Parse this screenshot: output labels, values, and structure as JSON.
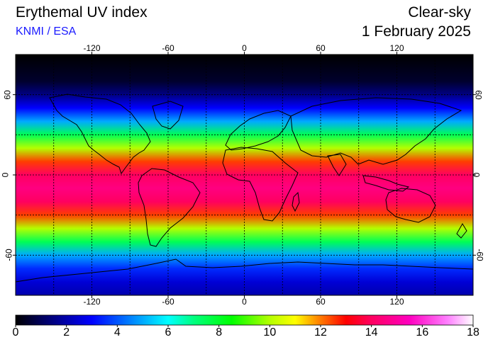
{
  "header": {
    "title": "Erythemal UV index",
    "credit": "KNMI / ESA",
    "condition": "Clear-sky",
    "date": "1 February 2025"
  },
  "map": {
    "projection": "equirectangular",
    "lon_range": [
      -180,
      180
    ],
    "lat_range": [
      -90,
      90
    ],
    "lon_ticks": [
      -120,
      -60,
      0,
      60,
      120
    ],
    "lat_ticks": [
      60,
      0,
      -60
    ],
    "lon_tick_labels": [
      "-120",
      "-60",
      "0",
      "60",
      "120"
    ],
    "lat_tick_labels": [
      "60",
      "0",
      "-60"
    ],
    "gridline_lats": [
      -60,
      -30,
      0,
      30,
      60
    ],
    "gridline_lons": [
      -150,
      -120,
      -90,
      -60,
      -30,
      0,
      30,
      60,
      90,
      120,
      150
    ],
    "uv_zonal_profile": [
      {
        "lat": 90,
        "uv": 0
      },
      {
        "lat": 70,
        "uv": 0.5
      },
      {
        "lat": 60,
        "uv": 1.5
      },
      {
        "lat": 50,
        "uv": 3
      },
      {
        "lat": 40,
        "uv": 5
      },
      {
        "lat": 30,
        "uv": 7.5
      },
      {
        "lat": 20,
        "uv": 10
      },
      {
        "lat": 10,
        "uv": 12.5
      },
      {
        "lat": 0,
        "uv": 14
      },
      {
        "lat": -10,
        "uv": 14.5
      },
      {
        "lat": -20,
        "uv": 14
      },
      {
        "lat": -30,
        "uv": 12.5
      },
      {
        "lat": -40,
        "uv": 10
      },
      {
        "lat": -50,
        "uv": 7.5
      },
      {
        "lat": -60,
        "uv": 5
      },
      {
        "lat": -70,
        "uv": 3.5
      },
      {
        "lat": -80,
        "uv": 2.5
      },
      {
        "lat": -90,
        "uv": 2
      }
    ]
  },
  "colorbar": {
    "min": 0,
    "max": 18,
    "tick_labels": [
      "0",
      "2",
      "4",
      "6",
      "8",
      "10",
      "12",
      "14",
      "16",
      "18"
    ],
    "stops": [
      {
        "v": 0,
        "color": "#000000"
      },
      {
        "v": 1,
        "color": "#00005a"
      },
      {
        "v": 3,
        "color": "#0000ff"
      },
      {
        "v": 5,
        "color": "#00aaff"
      },
      {
        "v": 6,
        "color": "#00ffff"
      },
      {
        "v": 7,
        "color": "#00ff80"
      },
      {
        "v": 8.5,
        "color": "#00ff00"
      },
      {
        "v": 10,
        "color": "#b4ff00"
      },
      {
        "v": 11,
        "color": "#ffff00"
      },
      {
        "v": 12,
        "color": "#ff7a00"
      },
      {
        "v": 13,
        "color": "#ff0000"
      },
      {
        "v": 14,
        "color": "#ff0060"
      },
      {
        "v": 15.5,
        "color": "#ff00c0"
      },
      {
        "v": 17,
        "color": "#ff80ff"
      },
      {
        "v": 18,
        "color": "#ffffff"
      }
    ]
  }
}
